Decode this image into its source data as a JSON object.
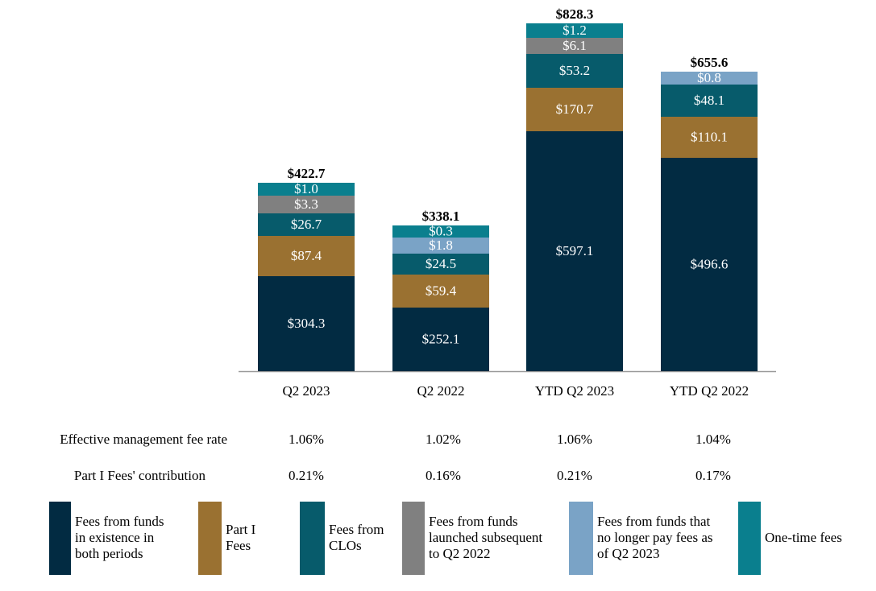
{
  "chart_data": {
    "type": "bar",
    "stacked": true,
    "categories": [
      "Q2 2023",
      "Q2 2022",
      "YTD Q2 2023",
      "YTD Q2 2022"
    ],
    "series": [
      {
        "name": "Fees from funds in existence in both periods",
        "color": "#022B42",
        "values": [
          304.3,
          252.1,
          597.1,
          496.6
        ],
        "labels": [
          "$304.3",
          "$252.1",
          "$597.1",
          "$496.6"
        ]
      },
      {
        "name": "Part I Fees",
        "color": "#9A7131",
        "values": [
          87.4,
          59.4,
          170.7,
          110.1
        ],
        "labels": [
          "$87.4",
          "$59.4",
          "$170.7",
          "$110.1"
        ]
      },
      {
        "name": "Fees from CLOs",
        "color": "#075B6B",
        "values": [
          26.7,
          24.5,
          53.2,
          48.1
        ],
        "labels": [
          "$26.7",
          "$24.5",
          "$53.2",
          "$48.1"
        ]
      },
      {
        "name": "Fees from funds launched subsequent to Q2 2022",
        "color": "#808080",
        "values": [
          3.3,
          null,
          6.1,
          null
        ],
        "labels": [
          "$3.3",
          null,
          "$6.1",
          null
        ]
      },
      {
        "name": "Fees from funds that no longer pay fees as of Q2 2023",
        "color": "#7AA3C6",
        "values": [
          null,
          1.8,
          null,
          0.8
        ],
        "labels": [
          null,
          "$1.8",
          null,
          "$0.8"
        ]
      },
      {
        "name": "One-time fees",
        "color": "#0A7F8E",
        "values": [
          1.0,
          0.3,
          1.2,
          null
        ],
        "labels": [
          "$1.0",
          "$0.3",
          "$1.2",
          null
        ]
      }
    ],
    "totals": [
      "$422.7",
      "$338.1",
      "$828.3",
      "$655.6"
    ],
    "legend_position": "bottom",
    "grid": false
  },
  "table": {
    "rows": [
      {
        "label": "Effective management fee rate",
        "values": [
          "1.06%",
          "1.02%",
          "1.06%",
          "1.04%"
        ]
      },
      {
        "label": "Part I Fees' contribution",
        "values": [
          "0.21%",
          "0.16%",
          "0.21%",
          "0.17%"
        ]
      }
    ]
  },
  "legend": [
    {
      "lines": [
        "Fees from funds",
        "in existence in",
        "both periods"
      ]
    },
    {
      "lines": [
        "Part I",
        "Fees"
      ]
    },
    {
      "lines": [
        "Fees from",
        "CLOs"
      ]
    },
    {
      "lines": [
        "Fees from funds",
        "launched subsequent",
        "to Q2 2022"
      ]
    },
    {
      "lines": [
        "Fees from funds that",
        "no longer pay fees as",
        "of Q2 2023"
      ]
    },
    {
      "lines": [
        "One-time fees"
      ]
    }
  ]
}
